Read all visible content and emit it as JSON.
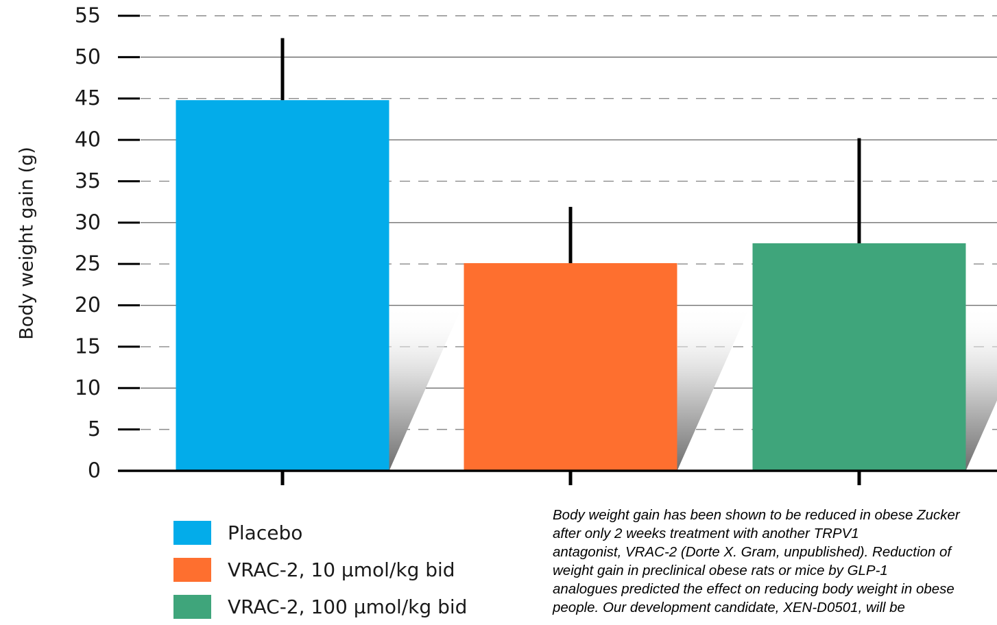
{
  "chart_data": {
    "type": "bar",
    "title": "",
    "xlabel": "",
    "ylabel": "Body weight gain  (g)",
    "ylim": [
      0,
      55
    ],
    "yticks": [
      0,
      5,
      10,
      15,
      20,
      25,
      30,
      35,
      40,
      45,
      50,
      55
    ],
    "grid": "horizontal, dashed at odd multiples of 5, solid at multiples of 10",
    "categories": [
      "Placebo",
      "VRAC-2, 10 µmol/kg bid",
      "VRAC-2, 100 µmol/kg bid"
    ],
    "values": [
      44.8,
      25.1,
      27.5
    ],
    "error_upper": [
      52.3,
      31.9,
      40.2
    ],
    "colors": [
      "#03acea",
      "#fe6f2f",
      "#3fa57b"
    ],
    "legend_position": "bottom-left"
  },
  "legend": [
    {
      "label": "Placebo",
      "color": "#03acea"
    },
    {
      "label": "VRAC-2, 10 µmol/kg bid",
      "color": "#fe6f2f"
    },
    {
      "label": "VRAC-2, 100 µmol/kg bid",
      "color": "#3fa57b"
    }
  ],
  "note_lines": [
    "Body weight gain has been shown to be reduced in obese Zucker",
    "after only 2 weeks treatment with another TRPV1",
    "antagonist, VRAC-2 (Dorte X. Gram, unpublished). Reduction of",
    "weight gain in preclinical obese rats or mice by GLP-1",
    "analogues predicted the effect on reducing body weight in obese",
    "people. Our development candidate, XEN-D0501, will be"
  ]
}
